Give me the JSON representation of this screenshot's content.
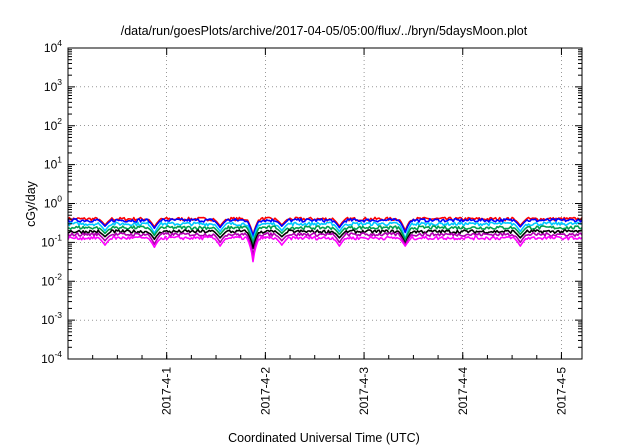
{
  "chart_data": {
    "type": "line",
    "title": "/data/run/goesPlots/archive/2017-04-05/05:00/flux/../bryn/5daysMoon.plot",
    "xlabel": "Coordinated Universal Time (UTC)",
    "ylabel": "cGy/day",
    "yscale": "log",
    "ylim": [
      0.0001,
      10000
    ],
    "yticks": [
      {
        "base": "10",
        "exp": "-4",
        "value": 0.0001
      },
      {
        "base": "10",
        "exp": "-3",
        "value": 0.001
      },
      {
        "base": "10",
        "exp": "-2",
        "value": 0.01
      },
      {
        "base": "10",
        "exp": "-1",
        "value": 0.1
      },
      {
        "base": "10",
        "exp": "0",
        "value": 1
      },
      {
        "base": "10",
        "exp": "1",
        "value": 10
      },
      {
        "base": "10",
        "exp": "2",
        "value": 100
      },
      {
        "base": "10",
        "exp": "3",
        "value": 1000
      },
      {
        "base": "10",
        "exp": "4",
        "value": 10000
      }
    ],
    "xlim": [
      "2017-03-31T00:00",
      "2017-04-05T05:00"
    ],
    "xticks": [
      "2017-4-1",
      "2017-4-2",
      "2017-4-3",
      "2017-4-4",
      "2017-4-5"
    ],
    "grid": true,
    "series": [
      {
        "color": "#ff0000",
        "base": 0.4,
        "dips": [
          {
            "t": "2017-03-31T09:00",
            "v": 0.28
          },
          {
            "t": "2017-03-31T21:00",
            "v": 0.25
          },
          {
            "t": "2017-04-01T13:00",
            "v": 0.26
          },
          {
            "t": "2017-04-01T21:00",
            "v": 0.15
          },
          {
            "t": "2017-04-02T04:00",
            "v": 0.28
          },
          {
            "t": "2017-04-02T18:00",
            "v": 0.26
          },
          {
            "t": "2017-04-03T10:00",
            "v": 0.2
          },
          {
            "t": "2017-04-04T14:00",
            "v": 0.27
          }
        ]
      },
      {
        "color": "#0000ff",
        "base": 0.37,
        "dips": [
          {
            "t": "2017-03-31T09:00",
            "v": 0.26
          },
          {
            "t": "2017-03-31T21:00",
            "v": 0.23
          },
          {
            "t": "2017-04-01T13:00",
            "v": 0.24
          },
          {
            "t": "2017-04-01T21:00",
            "v": 0.14
          },
          {
            "t": "2017-04-02T04:00",
            "v": 0.26
          },
          {
            "t": "2017-04-02T18:00",
            "v": 0.24
          },
          {
            "t": "2017-04-03T10:00",
            "v": 0.18
          },
          {
            "t": "2017-04-04T14:00",
            "v": 0.25
          }
        ]
      },
      {
        "color": "#00c8ff",
        "base": 0.3,
        "dips": [
          {
            "t": "2017-03-31T09:00",
            "v": 0.2
          },
          {
            "t": "2017-03-31T21:00",
            "v": 0.17
          },
          {
            "t": "2017-04-01T13:00",
            "v": 0.19
          },
          {
            "t": "2017-04-01T21:00",
            "v": 0.11
          },
          {
            "t": "2017-04-02T04:00",
            "v": 0.2
          },
          {
            "t": "2017-04-02T18:00",
            "v": 0.19
          },
          {
            "t": "2017-04-03T10:00",
            "v": 0.12
          },
          {
            "t": "2017-04-04T14:00",
            "v": 0.19
          }
        ]
      },
      {
        "color": "#00a050",
        "base": 0.24,
        "dips": [
          {
            "t": "2017-03-31T09:00",
            "v": 0.17
          },
          {
            "t": "2017-03-31T21:00",
            "v": 0.15
          },
          {
            "t": "2017-04-01T13:00",
            "v": 0.16
          },
          {
            "t": "2017-04-01T21:00",
            "v": 0.09
          },
          {
            "t": "2017-04-02T04:00",
            "v": 0.17
          },
          {
            "t": "2017-04-02T18:00",
            "v": 0.16
          },
          {
            "t": "2017-04-03T10:00",
            "v": 0.11
          },
          {
            "t": "2017-04-04T14:00",
            "v": 0.16
          }
        ]
      },
      {
        "color": "#000000",
        "base": 0.19,
        "dips": [
          {
            "t": "2017-03-31T09:00",
            "v": 0.14
          },
          {
            "t": "2017-03-31T21:00",
            "v": 0.12
          },
          {
            "t": "2017-04-01T13:00",
            "v": 0.13
          },
          {
            "t": "2017-04-01T21:00",
            "v": 0.07
          },
          {
            "t": "2017-04-02T04:00",
            "v": 0.14
          },
          {
            "t": "2017-04-02T18:00",
            "v": 0.13
          },
          {
            "t": "2017-04-03T10:00",
            "v": 0.09
          },
          {
            "t": "2017-04-04T14:00",
            "v": 0.13
          }
        ]
      },
      {
        "color": "#b000b0",
        "base": 0.16,
        "dips": [
          {
            "t": "2017-03-31T09:00",
            "v": 0.11
          },
          {
            "t": "2017-03-31T21:00",
            "v": 0.09
          },
          {
            "t": "2017-04-01T13:00",
            "v": 0.1
          },
          {
            "t": "2017-04-01T21:00",
            "v": 0.045
          },
          {
            "t": "2017-04-02T04:00",
            "v": 0.11
          },
          {
            "t": "2017-04-02T18:00",
            "v": 0.1
          },
          {
            "t": "2017-04-03T10:00",
            "v": 0.085
          },
          {
            "t": "2017-04-04T14:00",
            "v": 0.1
          }
        ]
      },
      {
        "color": "#ff00ff",
        "base": 0.13,
        "dips": [
          {
            "t": "2017-03-31T09:00",
            "v": 0.085
          },
          {
            "t": "2017-03-31T21:00",
            "v": 0.075
          },
          {
            "t": "2017-04-01T13:00",
            "v": 0.08
          },
          {
            "t": "2017-04-01T21:00",
            "v": 0.032
          },
          {
            "t": "2017-04-02T04:00",
            "v": 0.085
          },
          {
            "t": "2017-04-02T18:00",
            "v": 0.08
          },
          {
            "t": "2017-04-03T10:00",
            "v": 0.08
          },
          {
            "t": "2017-04-04T14:00",
            "v": 0.08
          }
        ]
      }
    ]
  }
}
